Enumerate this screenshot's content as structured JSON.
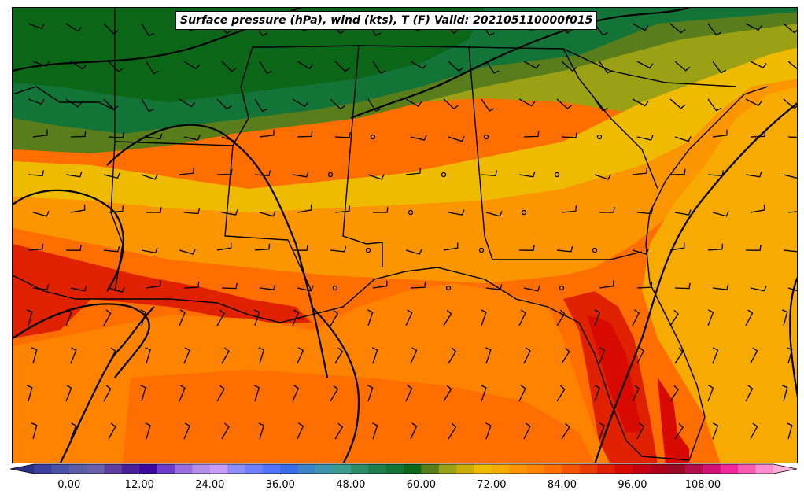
{
  "title": "Surface pressure (hPa), wind (kts), T (F) Valid: 202105110000f015",
  "colorbar": {
    "vmin": -6,
    "vmax": 120,
    "step": 3,
    "extend": "both",
    "tick_labels": [
      "0.00",
      "12.00",
      "24.00",
      "36.00",
      "48.00",
      "60.00",
      "72.00",
      "84.00",
      "96.00",
      "108.00"
    ],
    "tick_values": [
      0,
      12,
      24,
      36,
      48,
      60,
      72,
      84,
      96,
      108
    ],
    "colors": [
      "#3a3e9c",
      "#4a52a8",
      "#5b5ea6",
      "#6a5fa8",
      "#5c3c9c",
      "#4b1f98",
      "#3c07a0",
      "#6c3ccc",
      "#9a6ddf",
      "#b58ee9",
      "#c79bf7",
      "#8e8ef9",
      "#6f80ff",
      "#4f72ff",
      "#3b6ce8",
      "#3a84c8",
      "#3d95ad",
      "#3a9c8c",
      "#2b8c6a",
      "#1f7e4e",
      "#137438",
      "#0b6617",
      "#597d1a",
      "#9ba115",
      "#cbac07",
      "#efbb01",
      "#f7aa00",
      "#fb9600",
      "#fd8300",
      "#ff6e00",
      "#f45400",
      "#e83c00",
      "#df2100",
      "#d80a00",
      "#c40010",
      "#ae0018",
      "#980a22",
      "#b40e4a",
      "#d41077",
      "#f1279b",
      "#f75cb3",
      "#fb8dcd"
    ]
  },
  "map": {
    "region": "Southeastern United States",
    "legend_colors": {
      "state_lines": "#000000",
      "isobars": "#000000",
      "land_warm": "#ff6e00",
      "cool_north": "#0b6617"
    }
  }
}
